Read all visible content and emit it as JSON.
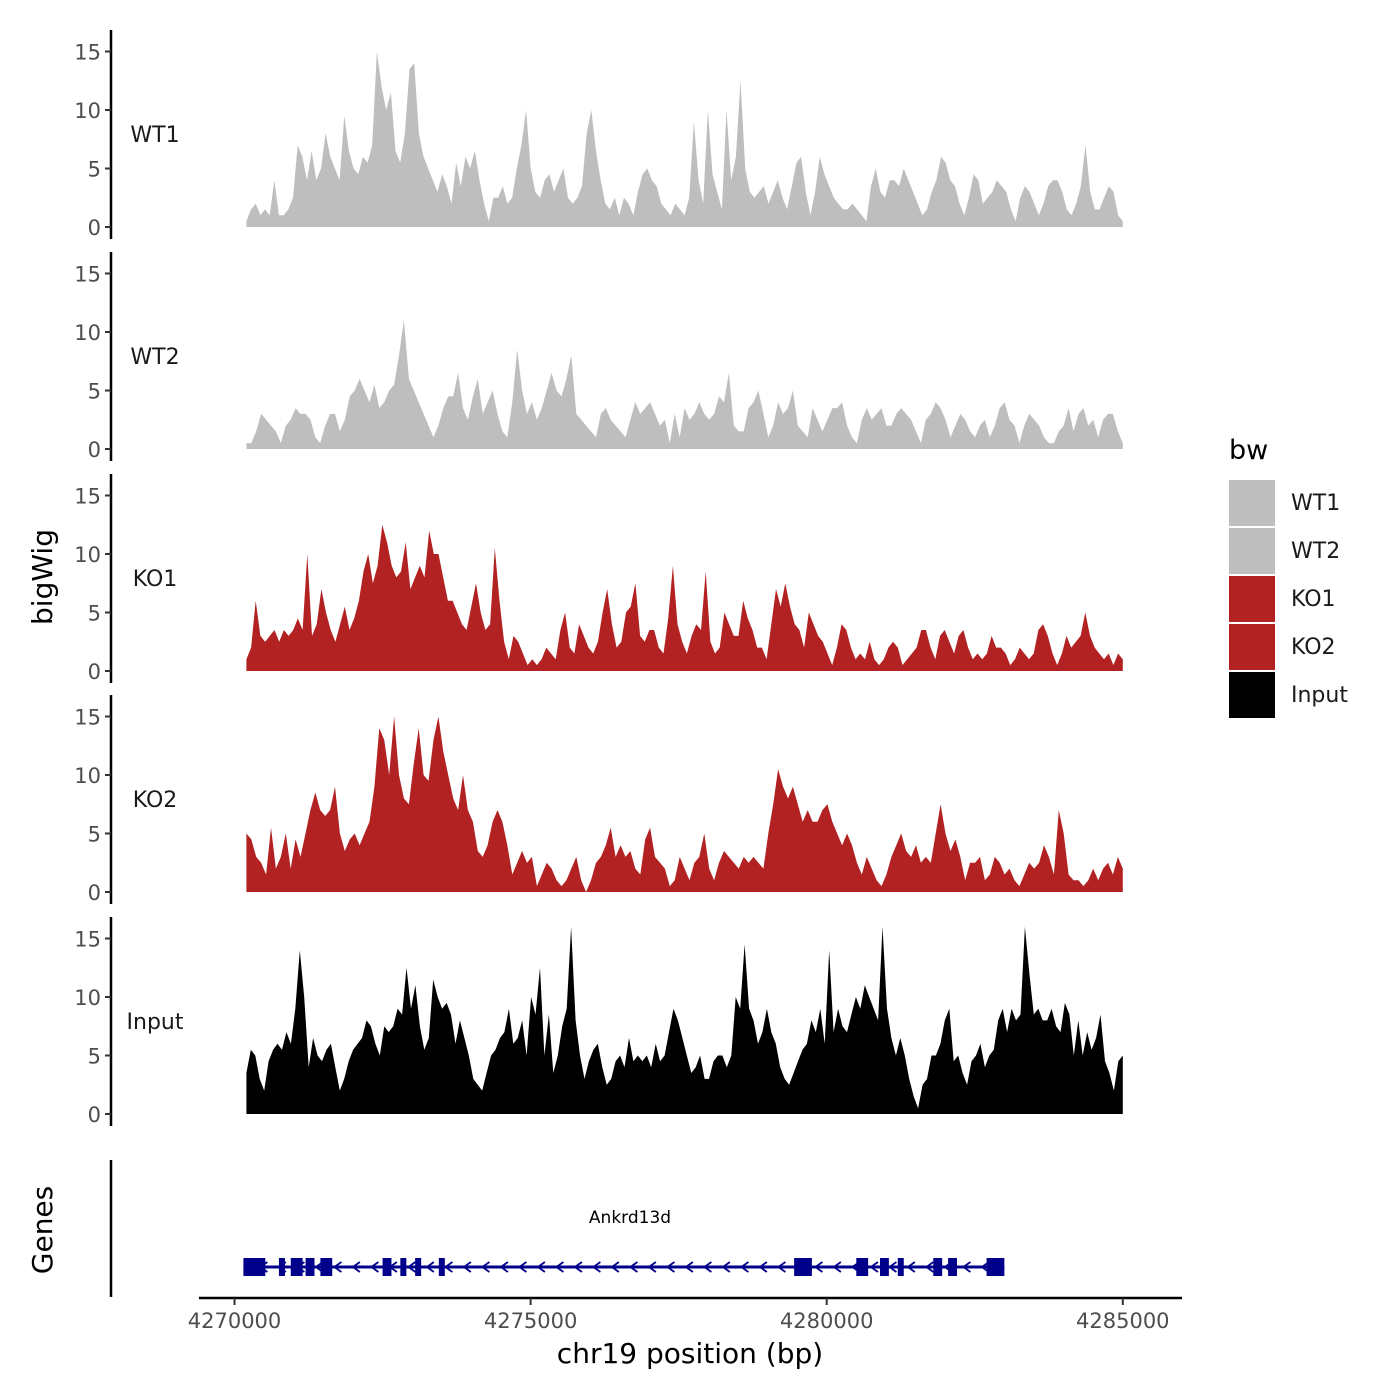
{
  "chart_data": {
    "type": "area",
    "title": "",
    "ylabel": "bigWig",
    "xlabel": "chr19 position (bp)",
    "gene_track_label": "Genes",
    "ylim": [
      0,
      16
    ],
    "yticks": [
      "0",
      "5",
      "10",
      "15"
    ],
    "yticks_values": [
      0,
      5,
      10,
      15
    ],
    "xlim": [
      4269400,
      4286000
    ],
    "xticks": [
      "4270000",
      "4275000",
      "4280000",
      "4285000"
    ],
    "xticks_values": [
      4270000,
      4275000,
      4280000,
      4285000
    ],
    "x_start": 4270200,
    "x_end": 4285000,
    "legend": {
      "title": "bw",
      "entries": [
        {
          "name": "WT1",
          "color": "#bebebe"
        },
        {
          "name": "WT2",
          "color": "#bebebe"
        },
        {
          "name": "KO1",
          "color": "#b22222"
        },
        {
          "name": "KO2",
          "color": "#b22222"
        },
        {
          "name": "Input",
          "color": "#000000"
        }
      ]
    },
    "series": [
      {
        "name": "WT1",
        "color": "#bebebe",
        "values": [
          0.5,
          1.5,
          2,
          1,
          1.5,
          1,
          4,
          1,
          1,
          1.5,
          2.5,
          7,
          6,
          4,
          6.5,
          4,
          5,
          8,
          6,
          5,
          4,
          9.5,
          6.5,
          5,
          4.5,
          6,
          5.5,
          7,
          15,
          12,
          10,
          11.5,
          6.5,
          5.5,
          8,
          13.5,
          14,
          8,
          6,
          5,
          4,
          3,
          4.5,
          3.5,
          2,
          5.5,
          3.5,
          6,
          5,
          6.5,
          4,
          2,
          0.5,
          2.5,
          2.5,
          3.5,
          2,
          2.5,
          5,
          7,
          10,
          5,
          3,
          2.5,
          4,
          4.5,
          3,
          4,
          5,
          2.5,
          2,
          2.5,
          3.5,
          8,
          10,
          6.5,
          4,
          2,
          1.5,
          2.5,
          1,
          2.5,
          2,
          1,
          3,
          4.5,
          5,
          4,
          3.5,
          2,
          1.5,
          1,
          2,
          1.5,
          1,
          2.5,
          9,
          4,
          2,
          10,
          4.5,
          3,
          1.5,
          10,
          4,
          6,
          12.5,
          5,
          3,
          2.5,
          3,
          3.5,
          2,
          3,
          4,
          2.5,
          1.5,
          3.5,
          5.5,
          6,
          3,
          1,
          3,
          6,
          4.5,
          3.5,
          2.5,
          2,
          1.5,
          1.5,
          2,
          1.5,
          1,
          0.5,
          3.5,
          5,
          3,
          2.5,
          4,
          4,
          3.5,
          5,
          4,
          3,
          2,
          1,
          1.5,
          3,
          4,
          6,
          5.5,
          4,
          3.5,
          2,
          1,
          2.5,
          4.5,
          4,
          2,
          2.5,
          3,
          4,
          3.5,
          3,
          1.5,
          0.5,
          2.5,
          3.5,
          3,
          2,
          1,
          2,
          3.5,
          4,
          4,
          3,
          1.5,
          1,
          2,
          3.5,
          7,
          3,
          1.5,
          1.5,
          2.5,
          3.5,
          3,
          1,
          0.5
        ]
      },
      {
        "name": "WT2",
        "color": "#bebebe",
        "values": [
          0.5,
          0.5,
          1.5,
          3,
          2.5,
          2,
          1.5,
          0.5,
          2,
          2.5,
          3.5,
          3,
          3,
          2.5,
          1,
          0.5,
          2,
          3,
          3,
          1.5,
          2.5,
          4.5,
          5,
          6,
          5,
          4,
          5.5,
          3.5,
          4,
          5,
          5.5,
          8,
          11,
          6,
          5,
          4,
          3,
          2,
          1,
          2,
          3.5,
          4.5,
          4.5,
          6.5,
          3.5,
          2.5,
          4.5,
          6,
          3,
          4,
          5,
          3,
          1.5,
          1,
          4,
          8.5,
          5,
          3,
          4,
          2.5,
          3.5,
          5,
          6.5,
          5,
          4.5,
          6,
          8,
          3,
          2.5,
          2,
          1.5,
          1,
          3,
          3.5,
          2.5,
          2,
          1.5,
          1,
          2.5,
          4,
          3,
          3.5,
          4,
          3,
          2,
          2.5,
          0.5,
          3,
          1,
          3.5,
          2.5,
          3,
          4,
          3,
          2.5,
          3,
          4.5,
          4,
          6.5,
          2,
          1.5,
          1.5,
          3.5,
          4,
          5,
          3,
          1,
          2,
          4,
          3,
          3.5,
          5,
          2,
          1.5,
          1,
          3.5,
          2.5,
          1.5,
          2.5,
          3.5,
          3.5,
          4,
          2,
          1,
          0.5,
          2.5,
          3.5,
          2.5,
          3,
          3.5,
          2,
          2,
          3,
          3.5,
          3,
          2.5,
          1.5,
          0.5,
          2.5,
          3,
          4,
          3.5,
          2.5,
          1,
          2,
          3,
          2.5,
          1.5,
          1,
          2,
          2.5,
          1,
          2,
          3.5,
          4,
          2.5,
          2,
          0.5,
          2,
          3,
          2.5,
          2,
          1,
          0.5,
          0.5,
          1.5,
          2,
          3.5,
          1.5,
          3,
          3.5,
          2,
          2.5,
          1,
          2.5,
          3,
          3,
          1.5,
          0.5
        ]
      },
      {
        "name": "KO1",
        "color": "#b22222",
        "values": [
          1,
          2,
          6,
          3,
          2.5,
          3,
          3.5,
          2.5,
          3.5,
          3,
          3.5,
          4.5,
          3.5,
          10,
          3,
          4,
          7,
          5,
          3.5,
          2.5,
          4,
          5.5,
          3.5,
          4.5,
          6,
          8.5,
          10,
          7.5,
          9,
          12.5,
          11,
          9,
          8,
          8.5,
          11,
          7,
          8,
          9,
          8,
          12,
          10,
          10,
          8,
          6,
          6,
          5,
          4,
          3.5,
          5.5,
          7.5,
          5,
          3.5,
          4,
          10.5,
          6,
          2.5,
          1,
          3,
          2.5,
          1.5,
          0.5,
          1,
          0.5,
          1,
          2,
          1.5,
          1,
          3.5,
          5,
          2,
          1.5,
          4,
          3,
          2,
          1.5,
          2.5,
          5,
          7,
          4,
          2,
          2.5,
          5,
          5.5,
          7.5,
          3,
          2.5,
          3.5,
          3.5,
          2,
          1.5,
          4.5,
          9,
          4,
          2.5,
          1.5,
          3,
          4,
          3.5,
          8.5,
          2.5,
          1.5,
          2,
          5,
          4,
          3,
          3,
          6,
          4.5,
          3.5,
          2,
          2,
          1,
          4,
          7,
          5.5,
          7.5,
          5.5,
          4,
          3.5,
          2,
          5,
          4,
          3,
          2.5,
          1.5,
          0.5,
          2,
          4,
          3.5,
          2,
          1,
          1.5,
          1,
          2.5,
          1,
          0.5,
          1,
          2,
          2.5,
          2,
          0.5,
          1,
          1.5,
          2,
          3.5,
          3.5,
          2,
          1,
          3,
          3.5,
          2.5,
          1.5,
          3,
          3.5,
          2,
          1,
          1.5,
          1,
          1.5,
          3,
          2,
          2,
          1.5,
          0.5,
          1,
          2,
          1.5,
          1,
          1.5,
          3.5,
          4,
          3,
          1.5,
          0.5,
          1.5,
          3,
          2,
          2.5,
          3,
          5,
          3,
          2,
          1.5,
          1,
          1.5,
          0.5,
          1.5,
          1
        ]
      },
      {
        "name": "KO2",
        "color": "#b22222",
        "values": [
          5,
          4.5,
          3,
          2.5,
          1.5,
          5.5,
          2,
          3,
          5,
          2,
          4.5,
          3,
          5,
          7,
          8.5,
          7,
          6.5,
          7,
          9,
          5,
          3.5,
          4.5,
          5,
          4,
          5,
          6,
          9,
          14,
          13,
          10,
          15,
          10,
          8,
          7.5,
          11,
          14,
          10,
          9.5,
          13,
          15,
          12,
          10,
          8,
          7,
          10,
          7,
          6,
          3.5,
          3,
          4,
          6,
          7,
          6,
          4,
          1.5,
          2.5,
          3.5,
          2.5,
          3,
          0.5,
          1.5,
          2.5,
          2,
          1,
          0.5,
          1,
          2,
          3,
          1,
          0,
          1,
          2.5,
          3,
          4,
          5.5,
          3,
          4,
          3,
          3.5,
          2,
          1.5,
          4.5,
          5.5,
          3,
          2.5,
          2,
          0.5,
          1,
          3,
          2,
          1,
          2.5,
          3,
          5,
          2,
          1,
          2.5,
          3.5,
          3,
          2.5,
          2,
          3,
          2.5,
          3,
          2.5,
          2,
          5,
          7.5,
          10.5,
          9,
          8,
          9,
          7.5,
          6,
          7,
          6,
          6,
          7,
          7.5,
          6,
          5,
          4,
          5,
          4,
          2.5,
          1.5,
          3,
          2,
          1,
          0.5,
          1.5,
          3,
          4,
          5,
          3.5,
          3,
          4,
          2.5,
          3,
          2.5,
          5,
          7.5,
          5,
          3.5,
          4.5,
          3,
          1,
          2.5,
          2.5,
          3,
          1,
          1.5,
          3,
          2.5,
          1.5,
          2,
          1,
          0.5,
          1.5,
          2.5,
          2,
          2.5,
          4,
          3,
          1.5,
          7,
          5,
          1.5,
          1,
          1,
          0.5,
          1,
          2,
          1,
          2,
          2.5,
          1.5,
          3,
          2
        ]
      },
      {
        "name": "Input",
        "color": "#000000",
        "values": [
          3.5,
          5.5,
          5,
          3,
          2,
          4.5,
          5.5,
          6,
          5.5,
          7,
          6,
          9,
          14,
          10,
          4,
          6.5,
          5,
          4.5,
          5.5,
          6,
          4,
          2,
          3,
          4.5,
          5.5,
          6,
          6.5,
          8,
          7.5,
          6,
          5,
          7.5,
          7,
          7.5,
          9,
          8.5,
          12.5,
          9,
          11,
          7.5,
          5.5,
          6.5,
          11.5,
          10,
          9,
          9.5,
          8.5,
          6,
          8,
          6.5,
          5,
          3,
          2.5,
          2,
          3.5,
          5,
          5.5,
          6.5,
          7,
          9,
          6,
          6.5,
          8,
          5,
          10,
          8.5,
          12.5,
          5,
          8.5,
          3.5,
          5,
          7.5,
          9,
          16,
          8,
          5,
          3,
          4.5,
          5.5,
          6,
          4,
          2.5,
          3,
          4.5,
          5,
          4,
          6.5,
          4.5,
          5,
          4.5,
          5,
          4,
          6,
          4.5,
          5,
          7,
          9,
          8,
          6.5,
          5,
          3.5,
          4,
          5,
          3,
          3,
          4.5,
          5,
          5,
          4,
          5,
          10,
          9,
          14.5,
          9,
          8,
          6,
          7,
          9,
          7,
          6,
          4,
          3,
          2.5,
          3.5,
          4.5,
          5.5,
          6,
          8,
          7,
          9,
          6,
          14,
          7,
          9,
          7.5,
          7,
          8.5,
          10,
          9,
          11,
          10,
          9,
          8,
          16,
          9,
          6.5,
          5,
          6.5,
          5,
          3,
          1.5,
          0.5,
          2.5,
          3,
          5,
          5,
          6,
          8,
          9,
          4.5,
          5,
          3.5,
          2.5,
          4.5,
          5,
          6,
          4,
          5,
          5.5,
          8,
          9,
          7,
          9,
          8,
          8.5,
          16,
          12,
          8.5,
          9,
          8,
          8,
          9,
          7.5,
          7,
          9.5,
          8.5,
          5,
          8,
          5,
          7,
          5.5,
          6.5,
          8.5,
          4.5,
          3.5,
          2,
          4.5,
          5
        ]
      }
    ],
    "gene": {
      "name": "Ankrd13d",
      "strand": "-",
      "start": 4270150,
      "end": 4283000,
      "color": "#00008b",
      "exons": [
        [
          4270150,
          4270520
        ],
        [
          4270750,
          4270850
        ],
        [
          4270950,
          4271150
        ],
        [
          4271200,
          4271350
        ],
        [
          4271450,
          4271650
        ],
        [
          4272500,
          4272650
        ],
        [
          4272800,
          4272900
        ],
        [
          4273050,
          4273100
        ],
        [
          4273450,
          4273500
        ],
        [
          4279450,
          4279750
        ],
        [
          4280500,
          4280700
        ],
        [
          4280900,
          4281050
        ],
        [
          4281200,
          4281250
        ],
        [
          4281800,
          4281950
        ],
        [
          4282050,
          4282200
        ],
        [
          4282700,
          4283000
        ]
      ]
    }
  }
}
